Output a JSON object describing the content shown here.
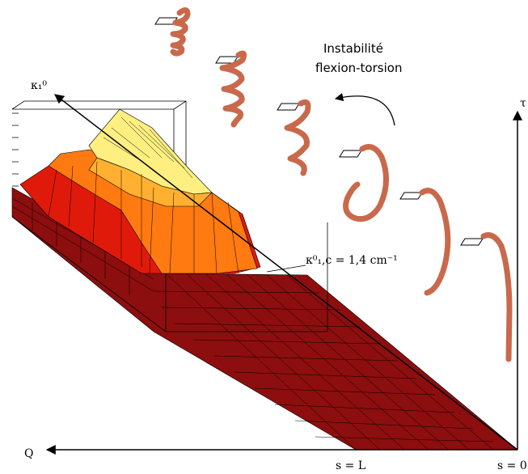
{
  "annotation": {
    "line1": "Instabilité",
    "line2": "flexion-torsion"
  },
  "axes": {
    "kappa": "κ₁⁰",
    "tau": "τ",
    "q": "Q",
    "s_end": "s = L",
    "s_start": "s = 0"
  },
  "threshold": {
    "label": "κ⁰₁,c = 1,4 cm⁻¹"
  }
}
